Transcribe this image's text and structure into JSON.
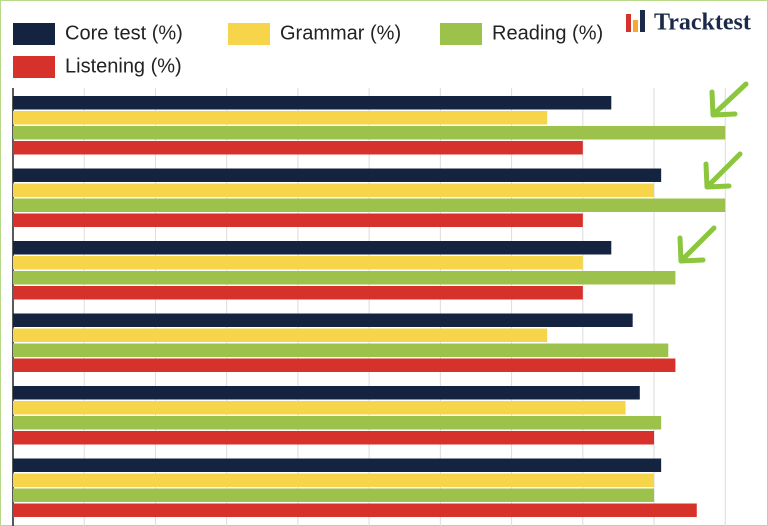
{
  "logo": {
    "text": "Tracktest"
  },
  "chart_data": {
    "type": "barh",
    "categories": [
      null,
      null,
      null,
      null,
      null,
      null
    ],
    "series": [
      {
        "name": "Core test (%)",
        "color": "#14233f",
        "values": [
          84,
          91,
          84,
          87,
          88,
          91
        ]
      },
      {
        "name": "Grammar (%)",
        "color": "#f7d54a",
        "values": [
          75,
          90,
          80,
          75,
          86,
          90
        ]
      },
      {
        "name": "Reading (%)",
        "color": "#9dc24c",
        "values": [
          100,
          100,
          93,
          92,
          91,
          90
        ]
      },
      {
        "name": "Listening (%)",
        "color": "#d6322b",
        "values": [
          80,
          80,
          80,
          93,
          90,
          96
        ]
      }
    ],
    "xlim": [
      0,
      106
    ],
    "xticks": [
      0,
      10,
      20,
      30,
      40,
      50,
      60,
      70,
      80,
      90,
      100
    ],
    "grid": true
  }
}
